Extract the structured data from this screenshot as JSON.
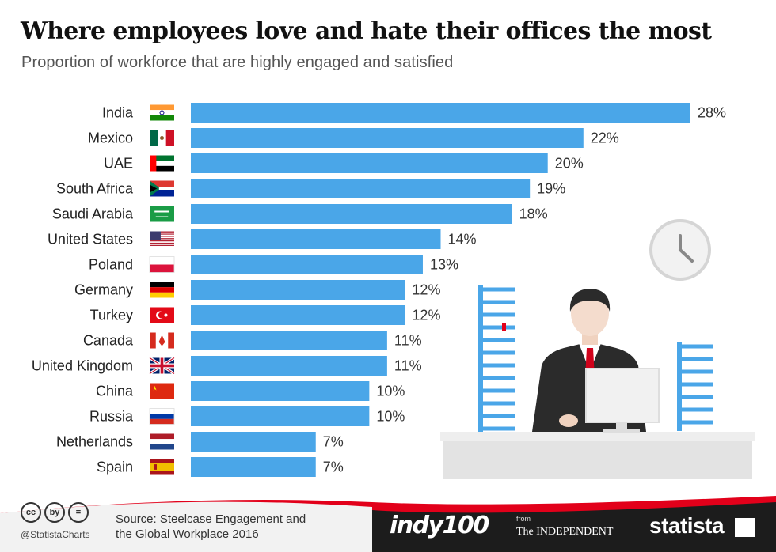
{
  "header": {
    "title": "Where employees love and hate their offices the most",
    "subtitle": "Proportion of workforce that are highly engaged and satisfied"
  },
  "chart_data": {
    "type": "bar",
    "orientation": "horizontal",
    "title": "Where employees love and hate their offices the most",
    "subtitle": "Proportion of workforce that are highly engaged and satisfied",
    "categories": [
      "India",
      "Mexico",
      "UAE",
      "South Africa",
      "Saudi Arabia",
      "United States",
      "Poland",
      "Germany",
      "Turkey",
      "Canada",
      "United Kingdom",
      "China",
      "Russia",
      "Netherlands",
      "Spain"
    ],
    "values": [
      28,
      22,
      20,
      19,
      18,
      14,
      13,
      12,
      12,
      11,
      11,
      10,
      10,
      7,
      7
    ],
    "value_suffix": "%",
    "bar_color": "#4aa6e8",
    "grid": false,
    "legend": "none"
  },
  "footer": {
    "handle": "@StatistaCharts",
    "source": "Source: Steelcase Engagement and\nthe Global Workplace 2016",
    "indy_logo": "indy100",
    "from_label": "from",
    "independent_logo": "The INDEPENDENT",
    "statista_logo": "statista",
    "cc_icons": [
      "cc",
      "by",
      "="
    ]
  },
  "colors": {
    "footer_dark": "#1c1c1c",
    "footer_red": "#e2001a"
  }
}
